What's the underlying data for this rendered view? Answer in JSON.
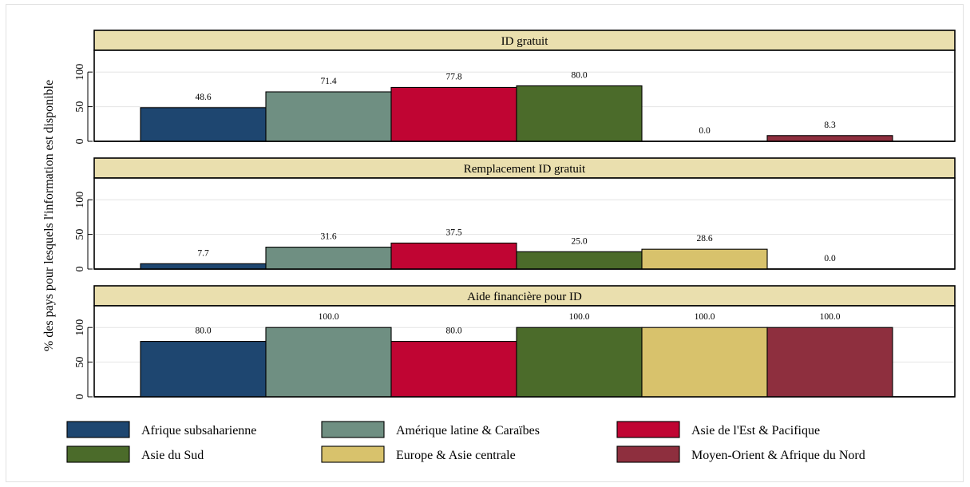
{
  "chart_data": {
    "type": "bar",
    "ylabel": "% des pays pour lesquels l'information est disponible",
    "ylim": [
      0,
      130
    ],
    "yticks": [
      0,
      50,
      100
    ],
    "grid": true,
    "legend_position": "bottom",
    "series": [
      {
        "name": "Afrique subsaharienne",
        "color": "#1e4670"
      },
      {
        "name": "Amérique latine & Caraïbes",
        "color": "#6f8f82"
      },
      {
        "name": "Asie de l'Est & Pacifique",
        "color": "#c00533"
      },
      {
        "name": "Asie du Sud",
        "color": "#4b6b2a"
      },
      {
        "name": "Europe & Asie centrale",
        "color": "#d8c26c"
      },
      {
        "name": "Moyen-Orient & Afrique du Nord",
        "color": "#8e2f3e"
      }
    ],
    "panels": [
      {
        "title": "ID gratuit",
        "values": [
          48.6,
          71.4,
          77.8,
          80.0,
          0.0,
          8.3
        ],
        "labels": [
          "48.6",
          "71.4",
          "77.8",
          "80.0",
          "0.0",
          "8.3"
        ]
      },
      {
        "title": "Remplacement ID gratuit",
        "values": [
          7.7,
          31.6,
          37.5,
          25.0,
          28.6,
          0.0
        ],
        "labels": [
          "7.7",
          "31.6",
          "37.5",
          "25.0",
          "28.6",
          "0.0"
        ]
      },
      {
        "title": "Aide financière pour ID",
        "values": [
          80.0,
          100.0,
          80.0,
          100.0,
          100.0,
          100.0
        ],
        "labels": [
          "80.0",
          "100.0",
          "80.0",
          "100.0",
          "100.0",
          "100.0"
        ]
      }
    ]
  }
}
